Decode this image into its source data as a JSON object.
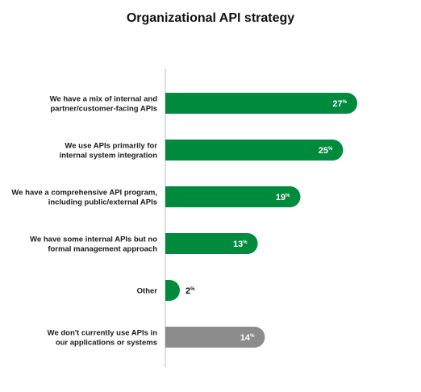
{
  "chart_data": {
    "type": "bar",
    "orientation": "horizontal",
    "title": "Organizational API strategy",
    "categories": [
      [
        "We have a mix of internal and",
        "partner/customer-facing APIs"
      ],
      [
        "We use APIs primarily for",
        "internal system integration"
      ],
      [
        "We have a comprehensive API program,",
        "including public/external APIs"
      ],
      [
        "We have some internal APIs but no",
        "formal management approach"
      ],
      [
        "Other"
      ],
      [
        "We don't currently use APIs in",
        "our applications or systems"
      ]
    ],
    "values": [
      27,
      25,
      19,
      13,
      2,
      14
    ],
    "unit": "%",
    "colors": [
      "#008a3e",
      "#008a3e",
      "#008a3e",
      "#008a3e",
      "#008a3e",
      "#8c8c8c"
    ],
    "xlim": [
      0,
      30
    ],
    "grid": false,
    "legend": "none"
  }
}
